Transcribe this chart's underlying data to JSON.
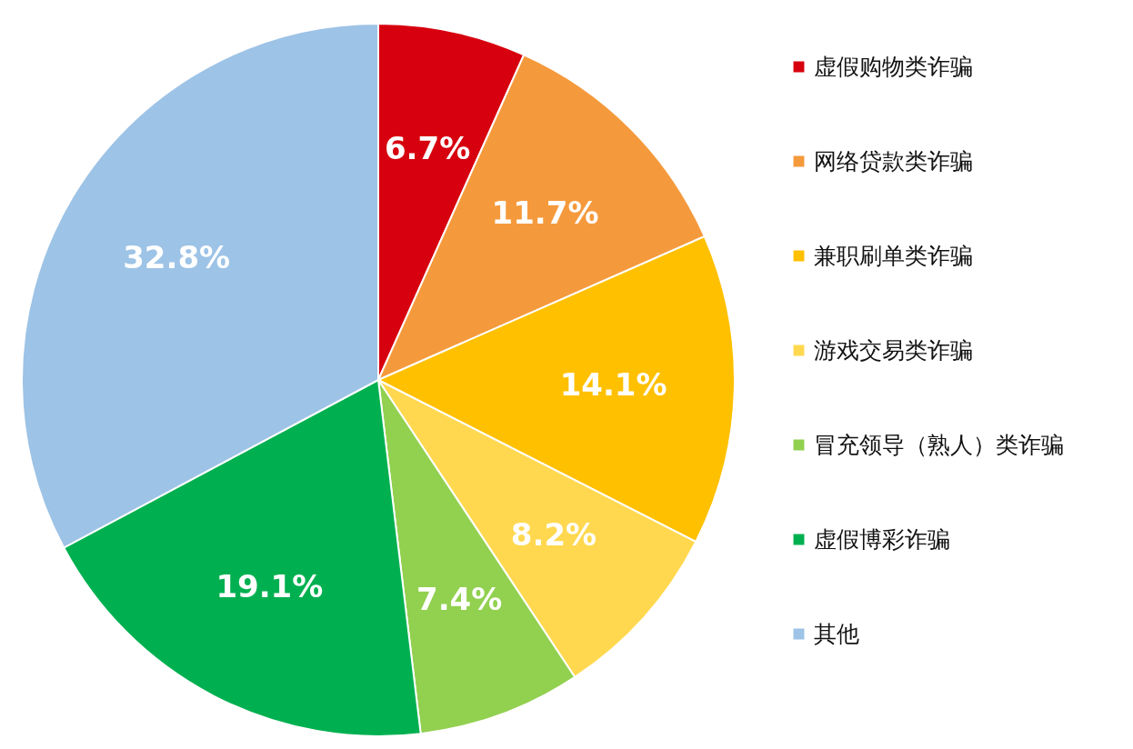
{
  "chart_data": {
    "type": "pie",
    "categories": [
      "虚假购物类诈骗",
      "网络贷款类诈骗",
      "兼职刷单类诈骗",
      "游戏交易类诈骗",
      "冒充领导（熟人）类诈骗",
      "虚假博彩诈骗",
      "其他"
    ],
    "values": [
      6.7,
      11.7,
      14.1,
      8.2,
      7.4,
      19.1,
      32.8
    ],
    "value_labels": [
      "6.7%",
      "11.7%",
      "14.1%",
      "8.2%",
      "7.4%",
      "19.1%",
      "32.8%"
    ],
    "colors": [
      "#d7000f",
      "#f59a3c",
      "#ffc000",
      "#ffd84f",
      "#92d050",
      "#00b050",
      "#9dc3e6"
    ],
    "legend": "right"
  }
}
